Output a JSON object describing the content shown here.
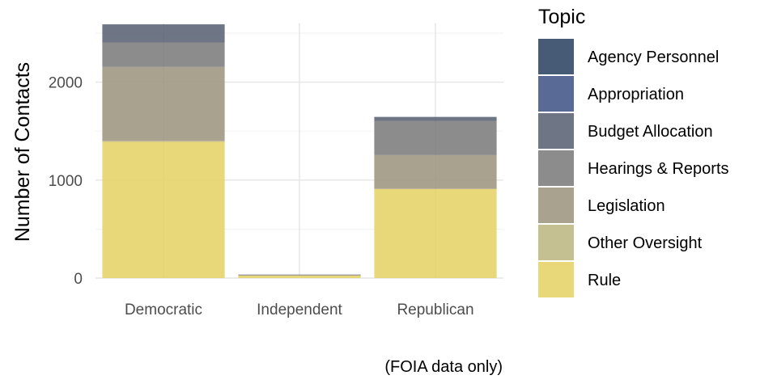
{
  "chart_data": {
    "type": "bar",
    "stacked": true,
    "categories": [
      "Democratic",
      "Independent",
      "Republican"
    ],
    "ylabel": "Number of Contacts",
    "xlabel": "",
    "ylim": [
      0,
      2600
    ],
    "yticks": [
      0,
      1000,
      2000
    ],
    "grid": true,
    "legend_title": "Topic",
    "legend_position": "right",
    "caption": "(FOIA data only)",
    "series": [
      {
        "name": "Rule",
        "color": "#E6D46C",
        "values": [
          1390,
          25,
          910
        ]
      },
      {
        "name": "Other Oversight",
        "color": "#BFB985",
        "values": [
          10,
          3,
          0
        ]
      },
      {
        "name": "Legislation",
        "color": "#9E9883",
        "values": [
          755,
          4,
          345
        ]
      },
      {
        "name": "Hearings & Reports",
        "color": "#7F7F7F",
        "values": [
          250,
          2,
          350
        ]
      },
      {
        "name": "Budget Allocation",
        "color": "#5E6678",
        "values": [
          185,
          1,
          40
        ]
      },
      {
        "name": "Appropriation",
        "color": "#465A89",
        "values": [
          0,
          0,
          0
        ]
      },
      {
        "name": "Agency Personnel",
        "color": "#334867",
        "values": [
          0,
          0,
          0
        ]
      }
    ]
  }
}
